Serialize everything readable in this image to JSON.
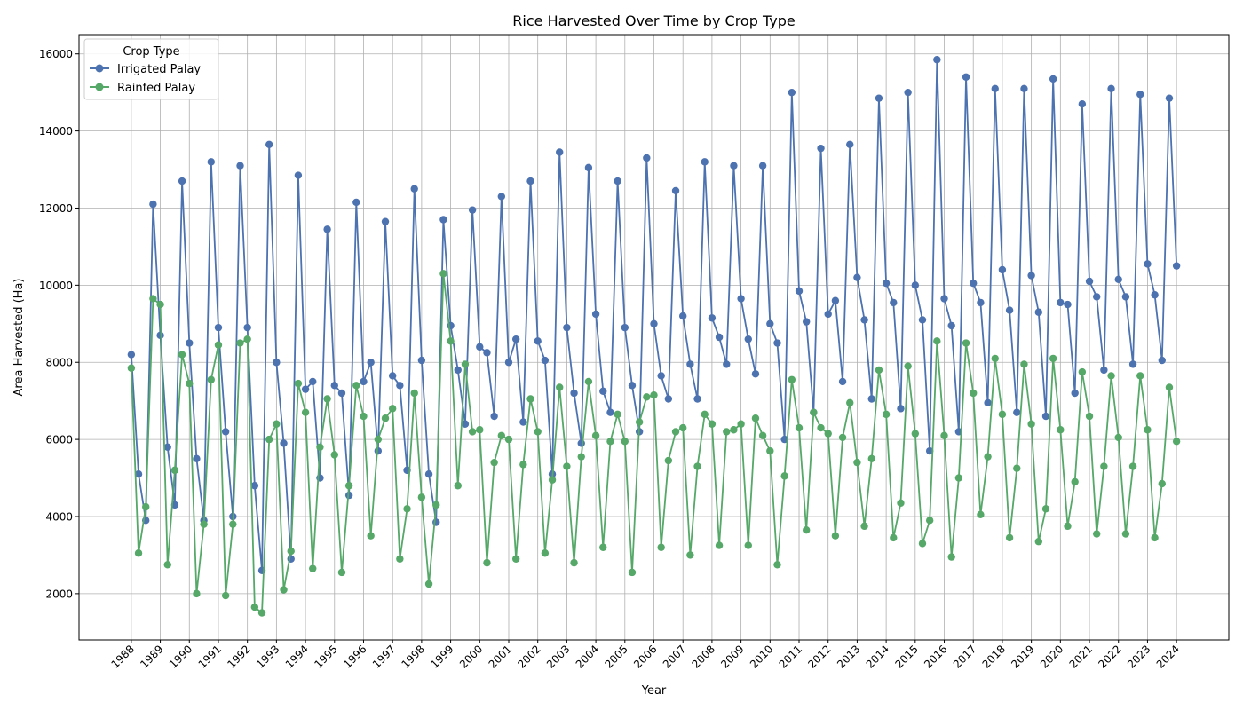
{
  "chart_data": {
    "type": "line",
    "title": "Rice Harvested Over Time by Crop Type",
    "xlabel": "Year",
    "ylabel": "Area Harvested (Ha)",
    "xlim": [
      1986.2,
      2025.8
    ],
    "ylim": [
      800,
      16500
    ],
    "grid": true,
    "legend_title": "Crop Type",
    "legend_position": "top-left",
    "x_ticks": [
      1988,
      1989,
      1990,
      1991,
      1992,
      1993,
      1994,
      1995,
      1996,
      1997,
      1998,
      1999,
      2000,
      2001,
      2002,
      2003,
      2004,
      2005,
      2006,
      2007,
      2008,
      2009,
      2010,
      2011,
      2012,
      2013,
      2014,
      2015,
      2016,
      2017,
      2018,
      2019,
      2020,
      2021,
      2022,
      2023,
      2024
    ],
    "y_ticks": [
      2000,
      4000,
      6000,
      8000,
      10000,
      12000,
      14000,
      16000
    ],
    "start_year": 1988,
    "points_per_year": 4,
    "series": [
      {
        "name": "Irrigated Palay",
        "color": "#4c72b0",
        "values": [
          8200,
          5100,
          3900,
          12100,
          8700,
          5800,
          4300,
          12700,
          8500,
          5500,
          3900,
          13200,
          8900,
          6200,
          4000,
          13100,
          8900,
          4800,
          2600,
          13650,
          8000,
          5900,
          2900,
          12850,
          7300,
          7500,
          5000,
          11450,
          7400,
          7200,
          4550,
          12150,
          7500,
          8000,
          5700,
          11650,
          7650,
          7400,
          5200,
          12500,
          8050,
          5100,
          3850,
          11700,
          8950,
          7800,
          6400,
          11950,
          8400,
          8250,
          6600,
          12300,
          8000,
          8600,
          6450,
          12700,
          8550,
          8050,
          5100,
          13450,
          8900,
          7200,
          5900,
          13050,
          9250,
          7250,
          6700,
          12700,
          8900,
          7400,
          6200,
          13300,
          9000,
          7650,
          7050,
          12450,
          9200,
          7950,
          7050,
          13200,
          9150,
          8650,
          7950,
          13100,
          9650,
          8600,
          7700,
          13100,
          9000,
          8500,
          6000,
          15000,
          9850,
          9050,
          6700,
          13550,
          9250,
          9600,
          7500,
          13650,
          10200,
          9100,
          7050,
          14850,
          10050,
          9550,
          6800,
          15000,
          10000,
          9100,
          5700,
          15850,
          9650,
          8950,
          6200,
          15400,
          10050,
          9550,
          6950,
          15100,
          10400,
          9350,
          6700,
          15100,
          10250,
          9300,
          6600,
          15350,
          9550,
          9500,
          7200,
          14700,
          10100,
          9700,
          7800,
          15100,
          10150,
          9700,
          7950,
          14950,
          10550,
          9750,
          8050,
          14850,
          10500
        ]
      },
      {
        "name": "Rainfed Palay",
        "color": "#55a868",
        "values": [
          7850,
          3050,
          4250,
          9650,
          9500,
          2750,
          5200,
          8200,
          7450,
          2000,
          3800,
          7550,
          8450,
          1950,
          3800,
          8500,
          8600,
          1650,
          1500,
          6000,
          6400,
          2100,
          3100,
          7450,
          6700,
          2650,
          5800,
          7050,
          5600,
          2550,
          4800,
          7400,
          6600,
          3500,
          6000,
          6550,
          6800,
          2900,
          4200,
          7200,
          4500,
          2250,
          4300,
          10300,
          8550,
          4800,
          7950,
          6200,
          6250,
          2800,
          5400,
          6100,
          6000,
          2900,
          5350,
          7050,
          6200,
          3050,
          4950,
          7350,
          5300,
          2800,
          5550,
          7500,
          6100,
          3200,
          5950,
          6650,
          5950,
          2550,
          6450,
          7100,
          7150,
          3200,
          5450,
          6200,
          6300,
          3000,
          5300,
          6650,
          6400,
          3250,
          6200,
          6250,
          6400,
          3250,
          6550,
          6100,
          5700,
          2750,
          5050,
          7550,
          6300,
          3650,
          6700,
          6300,
          6150,
          3500,
          6050,
          6950,
          5400,
          3750,
          5500,
          7800,
          6650,
          3450,
          4350,
          7900,
          6150,
          3300,
          3900,
          8550,
          6100,
          2950,
          5000,
          8500,
          7200,
          4050,
          5550,
          8100,
          6650,
          3450,
          5250,
          7950,
          6400,
          3350,
          4200,
          8100,
          6250,
          3750,
          4900,
          7750,
          6600,
          3550,
          5300,
          7650,
          6050,
          3550,
          5300,
          7650,
          6250,
          3450,
          4850,
          7350,
          5950
        ]
      }
    ]
  }
}
